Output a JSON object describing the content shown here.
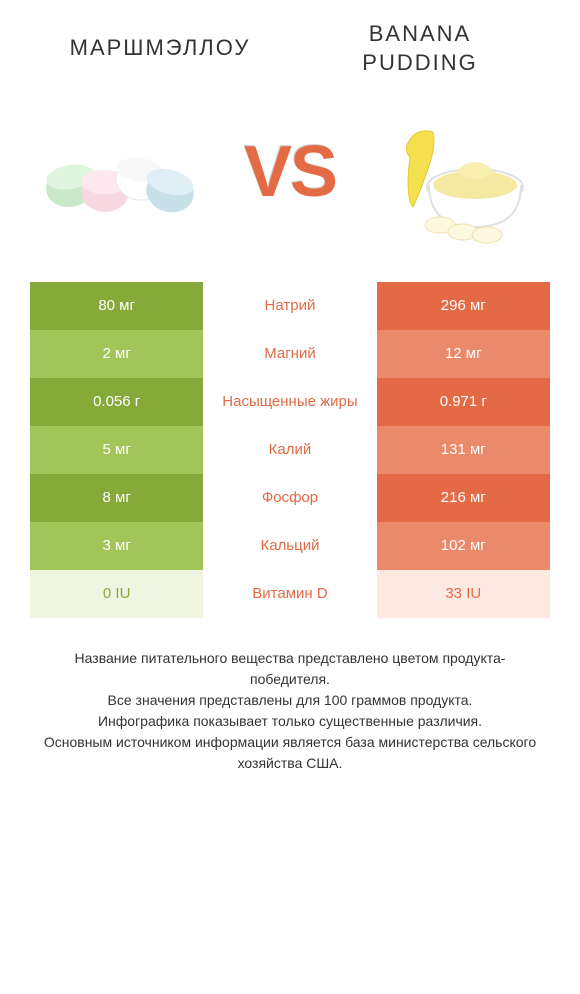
{
  "header": {
    "left_title": "МАРШМЭЛЛОУ",
    "right_title_line1": "BANANA",
    "right_title_line2": "PUDDING"
  },
  "vs_label": "VS",
  "colors": {
    "green_dark": "#86aa3a",
    "green_light": "#a2c559",
    "green_vlight": "#f0f5e2",
    "orange_dark": "#e46a45",
    "orange_light": "#ea8a6b",
    "orange_vlight": "#fbe9e2",
    "text": "#333333",
    "background": "#ffffff"
  },
  "table": {
    "rows": [
      {
        "left": "80 мг",
        "nutrient": "Натрий",
        "right": "296 мг",
        "winner": "right",
        "pattern": "dark"
      },
      {
        "left": "2 мг",
        "nutrient": "Магний",
        "right": "12 мг",
        "winner": "right",
        "pattern": "light"
      },
      {
        "left": "0.056 г",
        "nutrient": "Насыщенные жиры",
        "right": "0.971 г",
        "winner": "right",
        "pattern": "dark"
      },
      {
        "left": "5 мг",
        "nutrient": "Калий",
        "right": "131 мг",
        "winner": "right",
        "pattern": "light"
      },
      {
        "left": "8 мг",
        "nutrient": "Фосфор",
        "right": "216 мг",
        "winner": "right",
        "pattern": "dark"
      },
      {
        "left": "3 мг",
        "nutrient": "Кальций",
        "right": "102 мг",
        "winner": "right",
        "pattern": "light"
      },
      {
        "left": "0 IU",
        "nutrient": "Витамин D",
        "right": "33 IU",
        "winner": "right",
        "pattern": "vlight"
      }
    ]
  },
  "footer": {
    "line1": "Название питательного вещества представлено цветом продукта-победителя.",
    "line2": "Все значения представлены для 100 граммов продукта.",
    "line3": "Инфографика показывает только существенные различия.",
    "line4": "Основным источником информации является база министерства сельского хозяйства США."
  }
}
